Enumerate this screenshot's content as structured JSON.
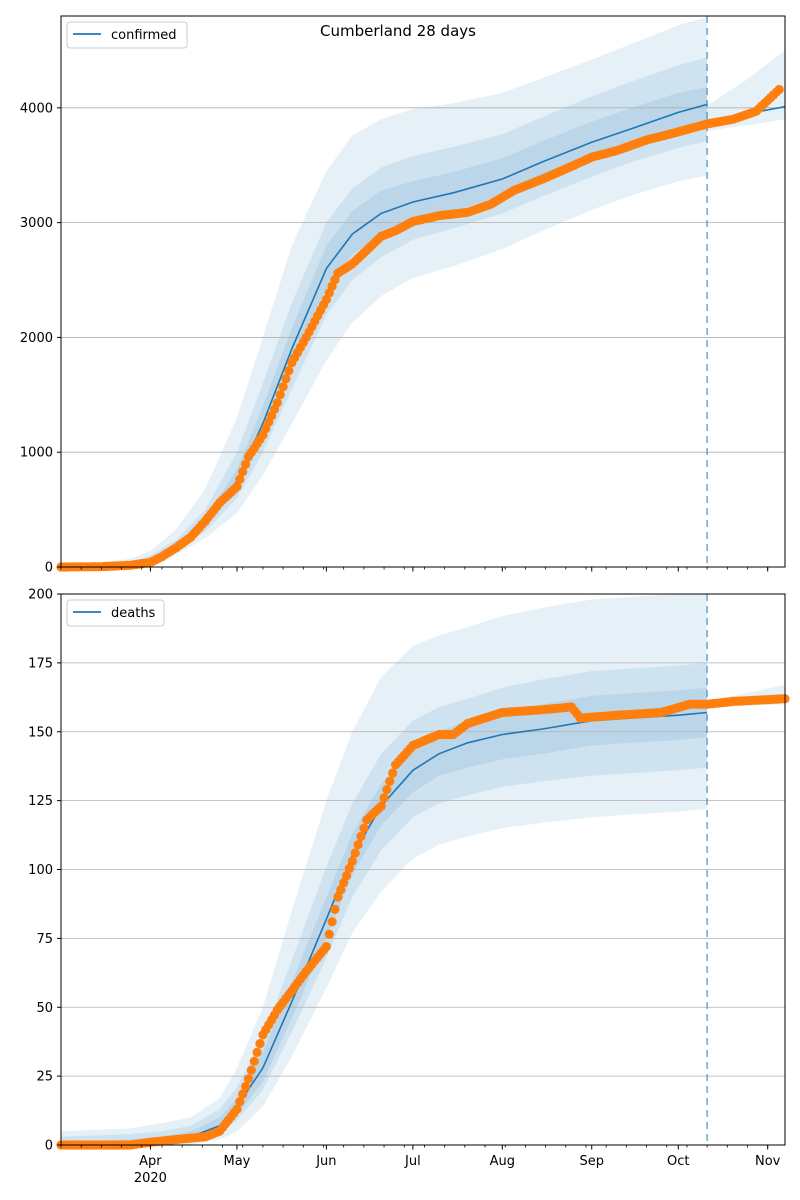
{
  "title": "Cumberland 28 days",
  "colors": {
    "model_line": "#1f77b4",
    "observed": "#ff7f0e",
    "band": "#1f77b4",
    "grid": "#b0b0b0",
    "cutoff": "#1f77b4"
  },
  "x_axis": {
    "tick_labels": [
      "Apr",
      "May",
      "Jun",
      "Jul",
      "Aug",
      "Sep",
      "Oct",
      "Nov"
    ],
    "year_label": "2020"
  },
  "chart_data": [
    {
      "type": "line",
      "legend": [
        "confirmed"
      ],
      "legend_position": "top-left",
      "series_name": "confirmed",
      "ylim": [
        0,
        4800
      ],
      "yticks": [
        "0",
        "1000",
        "2000",
        "3000",
        "4000"
      ],
      "grid": true,
      "x_range": [
        "2020-03-01",
        "2020-11-07"
      ],
      "cutoff_date": "2020-10-11",
      "model": {
        "x": [
          "2020-03-01",
          "2020-03-15",
          "2020-03-25",
          "2020-04-01",
          "2020-04-10",
          "2020-04-20",
          "2020-05-01",
          "2020-05-10",
          "2020-05-20",
          "2020-06-01",
          "2020-06-10",
          "2020-06-20",
          "2020-07-01",
          "2020-07-15",
          "2020-08-01",
          "2020-08-15",
          "2020-09-01",
          "2020-09-15",
          "2020-10-01",
          "2020-10-11"
        ],
        "values": [
          0,
          5,
          20,
          60,
          180,
          380,
          750,
          1250,
          1900,
          2600,
          2900,
          3080,
          3180,
          3260,
          3380,
          3530,
          3700,
          3820,
          3960,
          4030
        ]
      },
      "model_future": {
        "x": [
          "2020-10-11",
          "2020-10-25",
          "2020-11-07"
        ],
        "values": [
          3870,
          3950,
          4010
        ]
      },
      "bands": [
        {
          "lower": [
            0,
            0,
            5,
            30,
            110,
            250,
            470,
            800,
            1250,
            1800,
            2130,
            2360,
            2520,
            2620,
            2770,
            2930,
            3110,
            3240,
            3360,
            3410
          ],
          "upper": [
            20,
            40,
            70,
            140,
            330,
            680,
            1300,
            2000,
            2800,
            3450,
            3760,
            3900,
            3990,
            4040,
            4130,
            4260,
            4420,
            4560,
            4720,
            4790
          ]
        },
        {
          "lower": [
            0,
            2,
            10,
            40,
            140,
            310,
            600,
            1000,
            1550,
            2200,
            2500,
            2700,
            2850,
            2950,
            3080,
            3230,
            3400,
            3530,
            3650,
            3710
          ],
          "upper": [
            10,
            20,
            40,
            100,
            240,
            500,
            1000,
            1600,
            2300,
            3000,
            3300,
            3480,
            3580,
            3660,
            3770,
            3920,
            4100,
            4230,
            4370,
            4440
          ]
        },
        {
          "lower": [
            0,
            3,
            15,
            50,
            160,
            350,
            680,
            1130,
            1750,
            2420,
            2720,
            2900,
            3010,
            3100,
            3230,
            3380,
            3560,
            3680,
            3820,
            3890
          ],
          "upper": [
            5,
            10,
            28,
            75,
            210,
            430,
            850,
            1400,
            2080,
            2800,
            3100,
            3280,
            3360,
            3440,
            3560,
            3710,
            3880,
            4000,
            4130,
            4180
          ]
        }
      ],
      "band_future": {
        "x": [
          "2020-10-11",
          "2020-10-25",
          "2020-11-07"
        ],
        "lower": [
          3800,
          3850,
          3900
        ],
        "upper": [
          4020,
          4250,
          4500
        ]
      },
      "observed": {
        "x": [
          "2020-03-01",
          "2020-03-15",
          "2020-03-25",
          "2020-04-01",
          "2020-04-05",
          "2020-04-10",
          "2020-04-15",
          "2020-04-20",
          "2020-04-25",
          "2020-05-01",
          "2020-05-05",
          "2020-05-10",
          "2020-05-15",
          "2020-05-20",
          "2020-05-25",
          "2020-06-01",
          "2020-06-05",
          "2020-06-10",
          "2020-06-15",
          "2020-06-20",
          "2020-06-25",
          "2020-07-01",
          "2020-07-10",
          "2020-07-20",
          "2020-07-28",
          "2020-08-05",
          "2020-08-15",
          "2020-08-25",
          "2020-09-01",
          "2020-09-10",
          "2020-09-20",
          "2020-10-01",
          "2020-10-11",
          "2020-10-20",
          "2020-10-28",
          "2020-11-05"
        ],
        "values": [
          0,
          3,
          15,
          40,
          90,
          170,
          260,
          400,
          560,
          700,
          960,
          1150,
          1430,
          1780,
          2000,
          2330,
          2560,
          2640,
          2760,
          2880,
          2930,
          3010,
          3060,
          3090,
          3160,
          3280,
          3380,
          3490,
          3570,
          3630,
          3720,
          3790,
          3860,
          3900,
          3970,
          4160
        ]
      }
    },
    {
      "type": "line",
      "legend": [
        "deaths"
      ],
      "legend_position": "top-left",
      "series_name": "deaths",
      "ylim": [
        0,
        200
      ],
      "yticks": [
        "0",
        "25",
        "50",
        "75",
        "100",
        "125",
        "150",
        "175",
        "200"
      ],
      "grid": true,
      "x_range": [
        "2020-03-01",
        "2020-11-07"
      ],
      "cutoff_date": "2020-10-11",
      "model": {
        "x": [
          "2020-03-01",
          "2020-03-25",
          "2020-04-05",
          "2020-04-15",
          "2020-04-25",
          "2020-05-01",
          "2020-05-10",
          "2020-05-20",
          "2020-06-01",
          "2020-06-10",
          "2020-06-20",
          "2020-07-01",
          "2020-07-10",
          "2020-07-20",
          "2020-08-01",
          "2020-08-15",
          "2020-09-01",
          "2020-09-15",
          "2020-10-01",
          "2020-10-11"
        ],
        "values": [
          0,
          0,
          1,
          3,
          7,
          14,
          28,
          52,
          82,
          105,
          123,
          136,
          142,
          146,
          149,
          151,
          154,
          155,
          156,
          157
        ]
      },
      "model_future": {
        "x": [
          "2020-10-11",
          "2020-11-07"
        ],
        "values": [
          160,
          161
        ]
      },
      "bands": [
        {
          "lower": [
            0,
            0,
            0,
            0,
            2,
            5,
            14,
            32,
            57,
            77,
            92,
            104,
            109,
            112,
            115,
            117,
            119,
            120,
            121,
            122
          ],
          "upper": [
            5,
            6,
            8,
            10,
            17,
            28,
            50,
            85,
            125,
            150,
            170,
            181,
            185,
            188,
            192,
            195,
            198,
            199,
            200,
            200
          ]
        },
        {
          "lower": [
            0,
            0,
            0,
            1,
            4,
            9,
            20,
            41,
            68,
            90,
            107,
            119,
            124,
            127,
            130,
            132,
            134,
            135,
            136,
            137
          ],
          "upper": [
            3,
            4,
            5,
            7,
            13,
            21,
            39,
            67,
            101,
            124,
            142,
            154,
            159,
            162,
            166,
            169,
            172,
            173,
            174,
            175
          ]
        },
        {
          "lower": [
            0,
            0,
            1,
            2,
            5,
            11,
            23,
            46,
            75,
            98,
            116,
            128,
            134,
            137,
            140,
            142,
            145,
            146,
            147,
            148
          ],
          "upper": [
            1,
            2,
            3,
            5,
            10,
            17,
            34,
            59,
            90,
            113,
            131,
            144,
            150,
            154,
            157,
            160,
            163,
            164,
            165,
            166
          ]
        }
      ],
      "band_future": {
        "x": [
          "2020-10-11",
          "2020-11-07"
        ],
        "lower": [
          159,
          160
        ],
        "upper": [
          161,
          167
        ]
      },
      "observed": {
        "x": [
          "2020-03-01",
          "2020-03-25",
          "2020-04-01",
          "2020-04-10",
          "2020-04-20",
          "2020-04-25",
          "2020-05-01",
          "2020-05-05",
          "2020-05-10",
          "2020-05-15",
          "2020-05-20",
          "2020-05-25",
          "2020-06-01",
          "2020-06-05",
          "2020-06-10",
          "2020-06-15",
          "2020-06-20",
          "2020-06-25",
          "2020-07-01",
          "2020-07-10",
          "2020-07-15",
          "2020-07-20",
          "2020-08-01",
          "2020-08-15",
          "2020-08-25",
          "2020-08-28",
          "2020-09-10",
          "2020-09-25",
          "2020-10-05",
          "2020-10-11",
          "2020-10-20",
          "2020-11-07"
        ],
        "values": [
          0,
          0,
          1,
          2,
          3,
          5,
          13,
          24,
          40,
          49,
          56,
          63,
          72,
          90,
          103,
          118,
          123,
          138,
          145,
          149,
          149,
          153,
          157,
          158,
          159,
          155,
          156,
          157,
          160,
          160,
          161,
          162
        ]
      }
    }
  ]
}
